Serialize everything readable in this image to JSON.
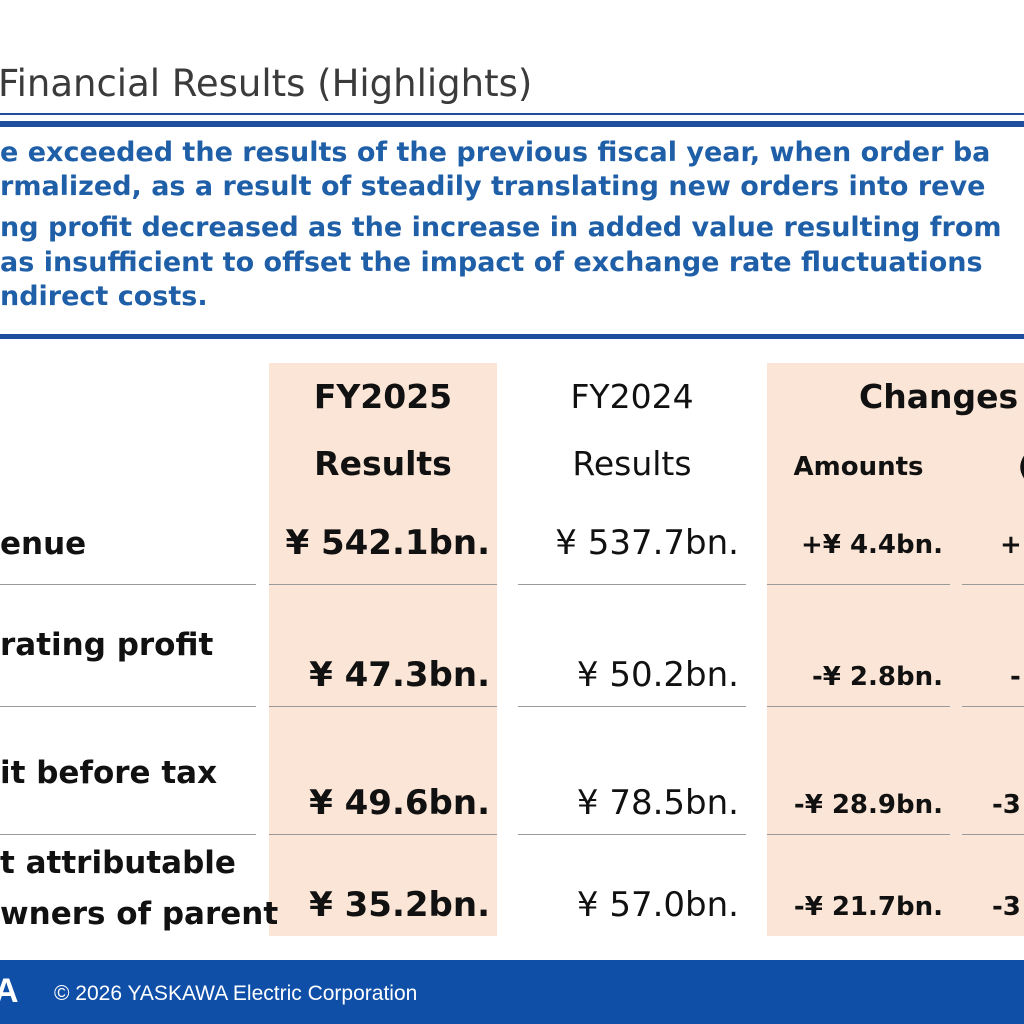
{
  "header": {
    "title": "Financial Results (Highlights)"
  },
  "summary": {
    "lines": [
      "e exceeded the results of the previous fiscal year, when order ba",
      "rmalized, as a result of steadily translating new orders into reve",
      "ng profit decreased as the increase in added value resulting from",
      "as insufficient to offset the impact of exchange rate fluctuations",
      "ndirect costs."
    ]
  },
  "table": {
    "headers": {
      "fy2025_line1": "FY2025",
      "fy2025_line2": "Results",
      "fy2024_line1": "FY2024",
      "fy2024_line2": "Results",
      "changes": "Changes",
      "amounts": "Amounts",
      "partial": "("
    },
    "rows": [
      {
        "label1": "enue",
        "label2": "",
        "fy2025": "¥ 542.1bn.",
        "fy2024": "¥ 537.7bn.",
        "amount": "+¥ 4.4bn.",
        "pct": "+"
      },
      {
        "label1": "rating profit",
        "label2": "",
        "fy2025": "¥ 47.3bn.",
        "fy2024": "¥ 50.2bn.",
        "amount": "-¥ 2.8bn.",
        "pct": "-"
      },
      {
        "label1": "it before tax",
        "label2": "",
        "fy2025": "¥ 49.6bn.",
        "fy2024": "¥ 78.5bn.",
        "amount": "-¥ 28.9bn.",
        "pct": "-3"
      },
      {
        "label1": "t attributable",
        "label2": "wners of parent",
        "fy2025": "¥ 35.2bn.",
        "fy2024": "¥ 57.0bn.",
        "amount": "-¥ 21.7bn.",
        "pct": "-3"
      }
    ]
  },
  "footer": {
    "logo_text": "A",
    "copyright": "© 2026 YASKAWA Electric Corporation"
  },
  "colors": {
    "accent_blue": "#1f4e9e",
    "summary_text": "#1f5fa8",
    "highlight_column": "#fbe5d6",
    "footer_bar": "#0f4fa8"
  }
}
